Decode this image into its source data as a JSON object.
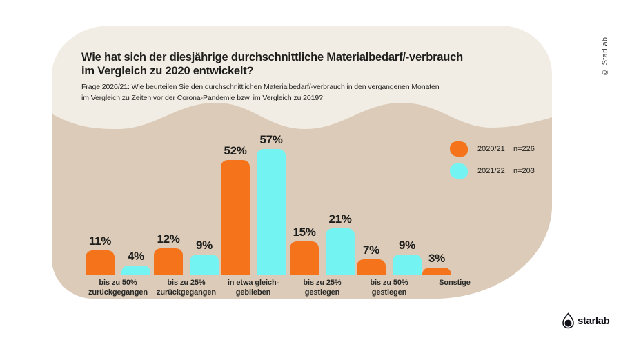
{
  "meta": {
    "copyright_vertical": "© StarLab",
    "brand_wordmark": "starlab"
  },
  "header": {
    "title": "Wie hat sich der diesjährige durchschnittliche Materialbedarf/-verbrauch\nim Vergleich zu 2020 entwickelt?",
    "subtitle": "Frage 2020/21: Wie beurteilen Sie den durchschnittlichen Materialbedarf/-verbrauch in den vergangenen Monaten\nim Vergleich zu Zeiten vor der Corona-Pandemie bzw. im Vergleich zu 2019?"
  },
  "colors": {
    "page_background": "#FFFFFF",
    "card_light": "#F2EDE4",
    "blob_tan": "#DBCBB8",
    "series_2020": "#F5731A",
    "series_2021": "#73F4F2",
    "text": "#1D1D1B"
  },
  "chart_data": {
    "type": "bar",
    "unit": "%",
    "title": "Wie hat sich der diesjährige durchschnittliche Materialbedarf/-verbrauch im Vergleich zu 2020 entwickelt?",
    "xlabel": "",
    "ylabel": "",
    "ylim": [
      0,
      60
    ],
    "grid": false,
    "legend_position": "right",
    "value_labels": true,
    "categories": [
      "bis zu 50%\nzurückgegangen",
      "bis zu 25%\nzurückgegangen",
      "in etwa gleich-\ngeblieben",
      "bis zu 25%\ngestiegen",
      "bis zu 50%\ngestiegen",
      "Sonstige"
    ],
    "series": [
      {
        "name": "2020/21",
        "n_label": "n=226",
        "color": "#F5731A",
        "values": [
          11,
          12,
          52,
          15,
          7,
          3
        ]
      },
      {
        "name": "2021/22",
        "n_label": "n=203",
        "color": "#73F4F2",
        "values": [
          4,
          9,
          57,
          21,
          9,
          null
        ]
      }
    ]
  }
}
